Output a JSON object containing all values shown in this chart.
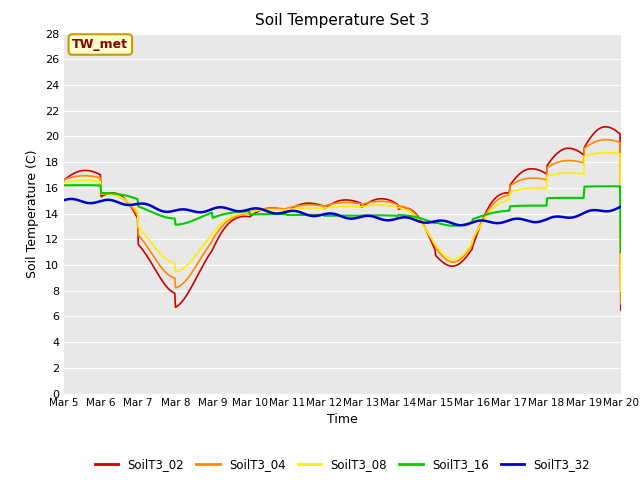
{
  "title": "Soil Temperature Set 3",
  "xlabel": "Time",
  "ylabel": "Soil Temperature (C)",
  "ylim": [
    0,
    28
  ],
  "yticks": [
    0,
    2,
    4,
    6,
    8,
    10,
    12,
    14,
    16,
    18,
    20,
    22,
    24,
    26,
    28
  ],
  "annotation_text": "TW_met",
  "annotation_color": "#8B0000",
  "annotation_bg": "#FFFFCC",
  "annotation_border": "#CC9900",
  "series_colors": {
    "SoilT3_02": "#CC0000",
    "SoilT3_04": "#FF8800",
    "SoilT3_08": "#FFEE00",
    "SoilT3_16": "#00CC00",
    "SoilT3_32": "#0000CC"
  },
  "bg_color": "#E8E8E8",
  "tick_labels": [
    "Mar 5",
    "Mar 6",
    "Mar 7",
    "Mar 8",
    "Mar 9",
    "Mar 10",
    "Mar 11",
    "Mar 12",
    "Mar 13",
    "Mar 14",
    "Mar 15",
    "Mar 16",
    "Mar 17",
    "Mar 18",
    "Mar 19",
    "Mar 20"
  ]
}
